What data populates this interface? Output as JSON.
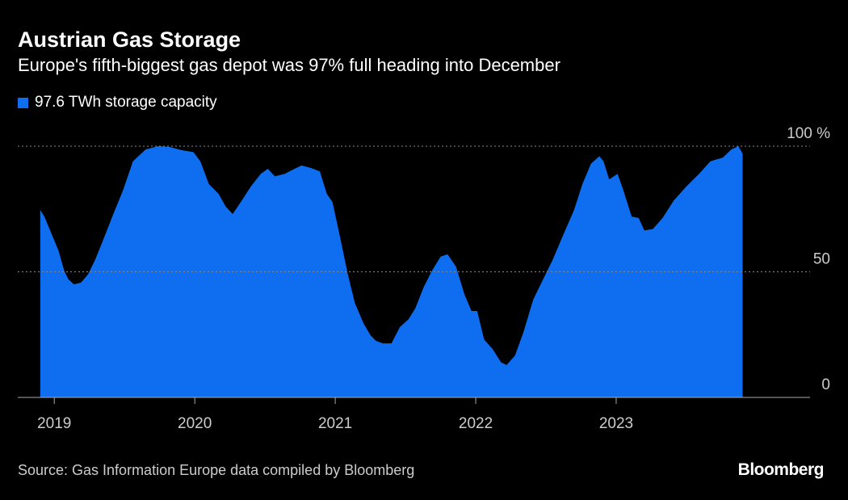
{
  "title": "Austrian Gas Storage",
  "subtitle": "Europe's fifth-biggest gas depot was 97% full heading into December",
  "source": "Source: Gas Information Europe data compiled by Bloomberg",
  "brand": "Bloomberg",
  "chart_data": {
    "type": "area",
    "title": "Austrian Gas Storage",
    "legend": [
      {
        "label": "97.6 TWh storage capacity",
        "color": "#0f6ef0"
      }
    ],
    "legend_placement": "top-left",
    "xlabel": "",
    "ylabel": "%",
    "xlim": [
      2018.74,
      2024.38
    ],
    "ylim": [
      0,
      100
    ],
    "x_ticks": [
      {
        "value": 2019,
        "label": "2019"
      },
      {
        "value": 2020,
        "label": "2020"
      },
      {
        "value": 2021,
        "label": "2021"
      },
      {
        "value": 2022,
        "label": "2022"
      },
      {
        "value": 2023,
        "label": "2023"
      }
    ],
    "y_ticks": [
      {
        "value": 0,
        "label": "0"
      },
      {
        "value": 50,
        "label": "50"
      },
      {
        "value": 100,
        "label": "100 %"
      }
    ],
    "grid": "horizontal dotted",
    "x": [
      2018.9,
      2018.93,
      2018.97,
      2019.03,
      2019.07,
      2019.1,
      2019.14,
      2019.19,
      2019.24,
      2019.29,
      2019.35,
      2019.42,
      2019.49,
      2019.56,
      2019.65,
      2019.74,
      2019.82,
      2019.91,
      2019.99,
      2020.04,
      2020.1,
      2020.17,
      2020.22,
      2020.27,
      2020.33,
      2020.4,
      2020.47,
      2020.52,
      2020.57,
      2020.64,
      2020.7,
      2020.76,
      2020.83,
      2020.89,
      2020.94,
      2020.98,
      2021.03,
      2021.09,
      2021.14,
      2021.2,
      2021.25,
      2021.29,
      2021.34,
      2021.4,
      2021.46,
      2021.52,
      2021.57,
      2021.63,
      2021.69,
      2021.75,
      2021.8,
      2021.86,
      2021.92,
      2021.97,
      2022.01,
      2022.06,
      2022.12,
      2022.18,
      2022.22,
      2022.28,
      2022.34,
      2022.41,
      2022.48,
      2022.55,
      2022.61,
      2022.7,
      2022.76,
      2022.82,
      2022.88,
      2022.91,
      2022.95,
      2023.01,
      2023.05,
      2023.11,
      2023.16,
      2023.2,
      2023.26,
      2023.33,
      2023.41,
      2023.5,
      2023.59,
      2023.67,
      2023.76,
      2023.82,
      2023.87,
      2023.9
    ],
    "values": [
      74.6,
      72,
      66.5,
      58.5,
      50.5,
      47,
      45,
      45.7,
      49,
      54.7,
      63,
      73,
      82.6,
      94,
      98.7,
      100,
      99.7,
      98.4,
      97.7,
      94,
      85,
      81,
      76,
      73,
      78,
      84,
      89,
      91,
      88,
      89,
      90.7,
      92.3,
      91.3,
      90,
      81,
      77.8,
      65,
      49,
      37.6,
      29.6,
      24.8,
      22.5,
      21.5,
      21.5,
      28,
      31,
      35.4,
      44,
      50.5,
      56,
      57,
      52,
      41,
      34.4,
      34.4,
      23,
      19.3,
      14,
      12.9,
      16.7,
      26,
      39,
      47,
      55,
      63,
      74.6,
      85,
      93,
      96,
      94,
      86.8,
      89,
      82.6,
      72,
      71.4,
      66.5,
      67,
      71.4,
      78.4,
      84,
      89,
      94,
      95.5,
      98.7,
      100,
      97
    ]
  }
}
